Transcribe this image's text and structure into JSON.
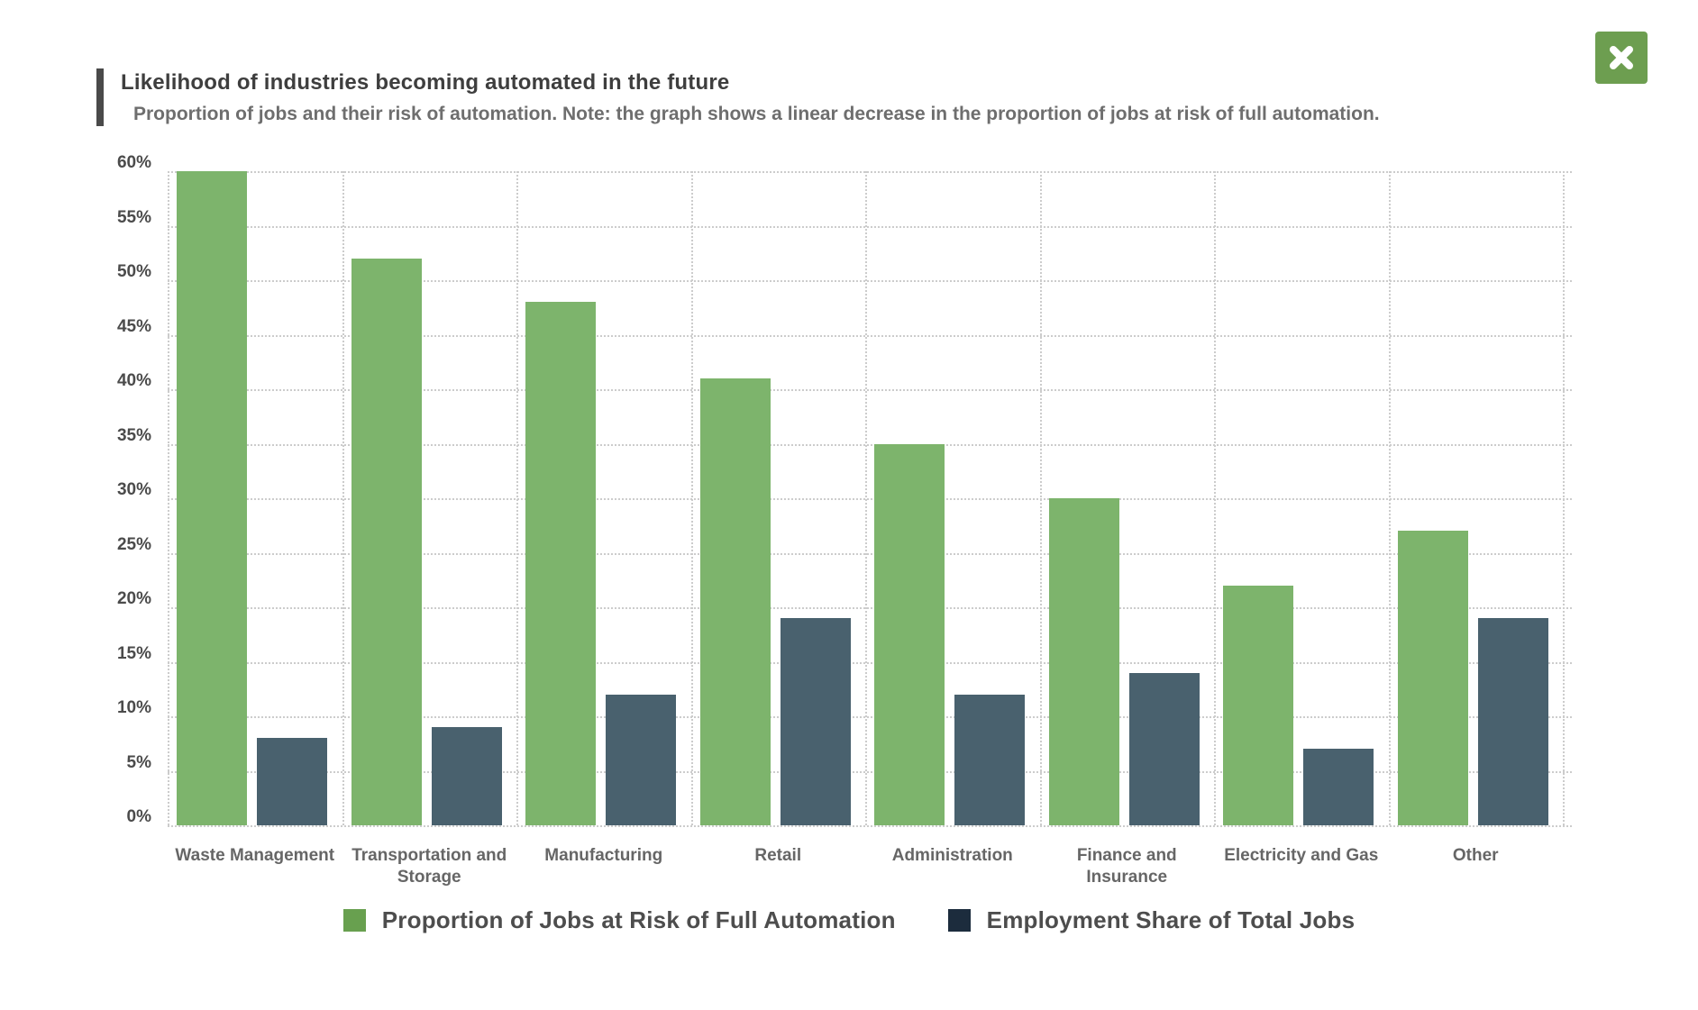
{
  "header": {
    "title": "Likelihood of industries becoming automated in the future",
    "subtitle": "Proportion of jobs and their risk of automation. Note: the graph shows a linear decrease in the proportion of jobs at risk of full automation.",
    "accent_color": "#4a4a4a"
  },
  "close_button": {
    "icon": "close-icon",
    "background": "#6d9e50"
  },
  "chart_data": {
    "type": "bar",
    "title": "Likelihood of industries becoming automated in the future",
    "subtitle": "Proportion of jobs and their risk of automation. Note: the graph shows a linear decrease in the proportion of jobs at risk of full automation.",
    "categories": [
      "Waste Management",
      "Transportation and Storage",
      "Manufacturing",
      "Retail",
      "Administration",
      "Finance and Insurance",
      "Electricity and Gas",
      "Other"
    ],
    "series": [
      {
        "name": "Proportion of Jobs at Risk of Full Automation",
        "color": "#7db46c",
        "legend_color": "#68a04f",
        "values": [
          60,
          52,
          48,
          41,
          35,
          30,
          22,
          27
        ]
      },
      {
        "name": "Employment Share of Total Jobs",
        "color": "#49616e",
        "legend_color": "#1c2c3d",
        "values": [
          8,
          9,
          12,
          19,
          12,
          14,
          7,
          19
        ]
      }
    ],
    "y_axis": {
      "min": 0,
      "max": 60,
      "step": 5,
      "tick_suffix": "%"
    },
    "y_tick_labels": [
      "0%",
      "5%",
      "10%",
      "15%",
      "20%",
      "25%",
      "30%",
      "35%",
      "40%",
      "45%",
      "50%",
      "55%",
      "60%"
    ],
    "grid": {
      "style": "dotted",
      "color": "#cccccc"
    },
    "legend_position": "bottom",
    "xlabel": "",
    "ylabel": ""
  }
}
